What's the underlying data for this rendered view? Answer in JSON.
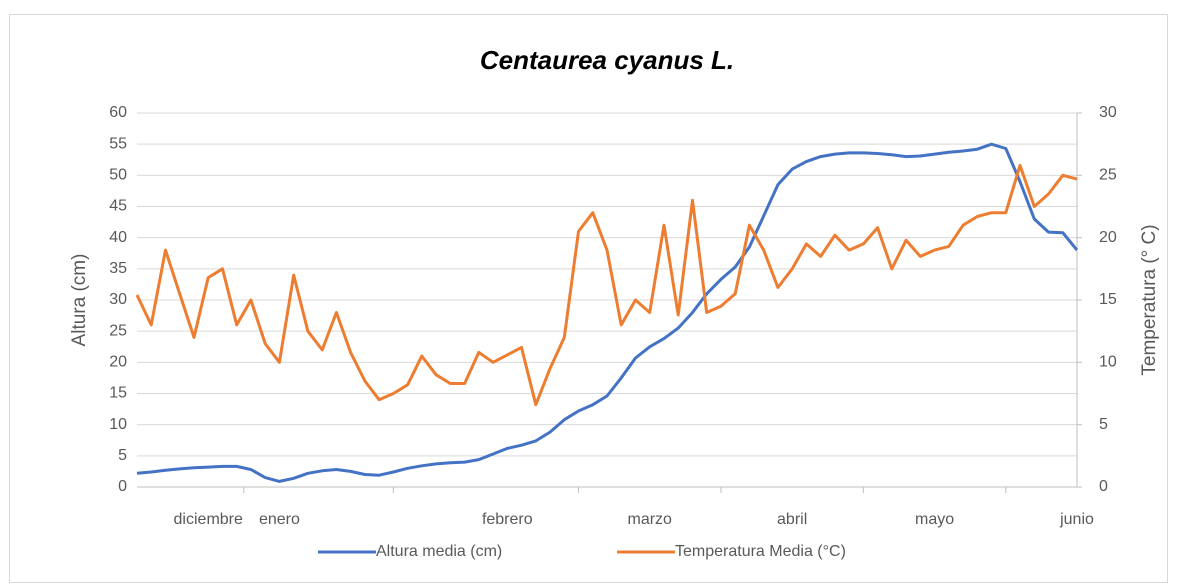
{
  "chart_data": {
    "type": "line",
    "title": "Centaurea cyanus L.",
    "y_label": "Altura (cm)",
    "y2_label": "Temperatura (° C)",
    "categories": [
      null,
      null,
      null,
      null,
      null,
      "diciembre",
      null,
      null,
      null,
      null,
      "enero",
      null,
      null,
      null,
      null,
      null,
      null,
      null,
      null,
      null,
      null,
      null,
      null,
      null,
      null,
      null,
      "febrero",
      null,
      null,
      null,
      null,
      null,
      null,
      null,
      null,
      null,
      "marzo",
      null,
      null,
      null,
      null,
      null,
      null,
      null,
      null,
      null,
      "abril",
      null,
      null,
      null,
      null,
      null,
      null,
      null,
      null,
      null,
      "mayo",
      null,
      null,
      null,
      null,
      null,
      null,
      null,
      null,
      null,
      "junio"
    ],
    "ylim": [
      0,
      60
    ],
    "yticks": [
      0,
      5,
      10,
      15,
      20,
      25,
      30,
      35,
      40,
      45,
      50,
      55,
      60
    ],
    "y2lim": [
      0,
      30
    ],
    "y2ticks": [
      0,
      5,
      10,
      15,
      20,
      25,
      30
    ],
    "grid": true,
    "legend": "bottom",
    "series": [
      {
        "name": "Altura media (cm)",
        "color": "#4472c4",
        "values": [
          2.2,
          2.4,
          2.7,
          2.9,
          3.1,
          3.2,
          3.3,
          3.3,
          2.8,
          1.5,
          0.9,
          1.4,
          2.2,
          2.6,
          2.8,
          2.5,
          2.0,
          1.9,
          2.4,
          3.0,
          3.4,
          3.7,
          3.9,
          4.0,
          4.4,
          5.3,
          6.2,
          6.7,
          7.4,
          8.8,
          10.8,
          12.2,
          13.2,
          14.6,
          17.5,
          20.7,
          22.5,
          23.8,
          25.5,
          28,
          31,
          33.3,
          35.3,
          38.5,
          43.5,
          48.5,
          51,
          52.2,
          53,
          53.4,
          53.6,
          53.6,
          53.5,
          53.3,
          53.0,
          53.1,
          53.4,
          53.7,
          53.9,
          54.2,
          55,
          54.3,
          49,
          43,
          40.9,
          40.8,
          38
        ]
      },
      {
        "name": "Temperatura Media (°C)",
        "color": "#ed7d31",
        "axis": "y2",
        "values": [
          15.4,
          13,
          19,
          15.5,
          12,
          16.8,
          17.5,
          13,
          15,
          11.5,
          10,
          17,
          12.5,
          11,
          14,
          10.8,
          8.5,
          7,
          7.5,
          8.2,
          10.5,
          9,
          8.3,
          8.3,
          10.8,
          10,
          10.6,
          11.2,
          6.6,
          9.5,
          12,
          20.5,
          22,
          19,
          13,
          15,
          14,
          21,
          13.8,
          23,
          14,
          14.5,
          15.5,
          21,
          19,
          16,
          17.5,
          19.5,
          18.5,
          20.2,
          19,
          19.5,
          20.8,
          17.5,
          19.8,
          18.5,
          19,
          19.3,
          21,
          21.7,
          22,
          22,
          25.8,
          22.5,
          23.5,
          25,
          24.7
        ]
      }
    ]
  }
}
